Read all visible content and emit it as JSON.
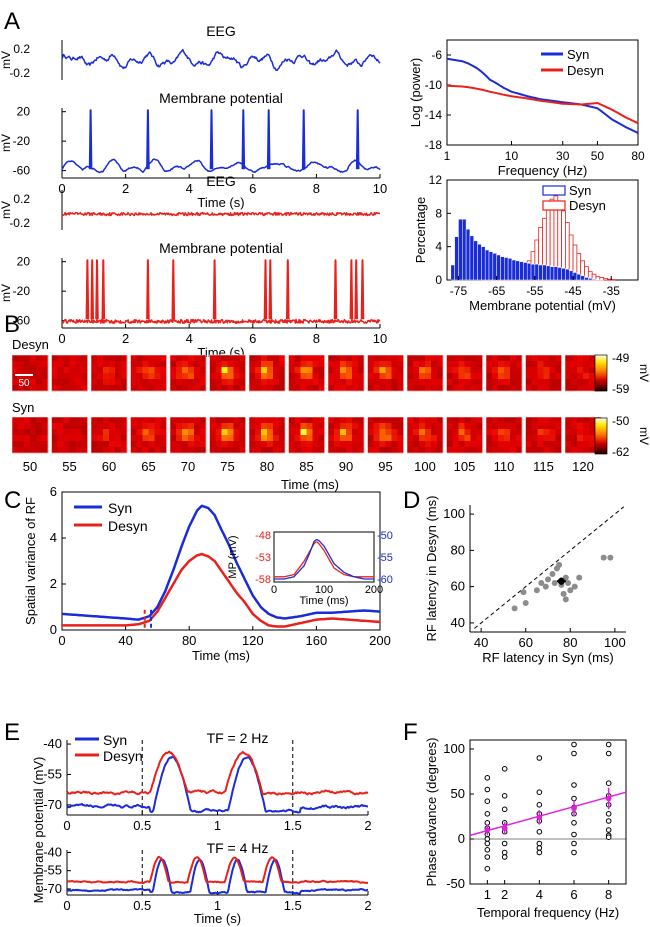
{
  "panel_labels": {
    "A": "A",
    "B": "B",
    "C": "C",
    "D": "D",
    "E": "E",
    "F": "F"
  },
  "colors": {
    "syn": "#1a2cd6",
    "desyn": "#e8211c",
    "scatter": "#8c8c8c",
    "fit": "#e020e0",
    "axis": "#000000"
  },
  "chart_data": [
    {
      "id": "A_syn_traces",
      "type": "line",
      "titles": {
        "eeg": "EEG",
        "mp": "Membrane potential"
      },
      "eeg_ylabel": "mV",
      "mp_ylabel": "mV",
      "eeg_ticks": [
        "0.2",
        "-0.2"
      ],
      "mp_ticks": [
        "20",
        "-20",
        "-60"
      ],
      "xlabel": "Time (s)",
      "xticks": [
        "0",
        "2",
        "4",
        "6",
        "8",
        "10"
      ],
      "xlim": [
        0,
        10
      ],
      "spike_times": [
        0.9,
        2.7,
        4.7,
        5.7,
        6.5,
        7.6,
        9.3
      ],
      "color": "syn"
    },
    {
      "id": "A_desyn_traces",
      "type": "line",
      "titles": {
        "eeg": "EEG",
        "mp": "Membrane potential"
      },
      "eeg_ylabel": "mV",
      "mp_ylabel": "mV",
      "eeg_ticks": [
        "0.2",
        "-0.2"
      ],
      "mp_ticks": [
        "20",
        "-20",
        "-60"
      ],
      "xlabel": "Time (s)",
      "xticks": [
        "0",
        "2",
        "4",
        "6",
        "8",
        "10"
      ],
      "xlim": [
        0,
        10
      ],
      "spike_times": [
        0.8,
        0.95,
        1.1,
        1.3,
        2.7,
        3.5,
        4.8,
        6.4,
        6.55,
        7.1,
        8.6,
        9.1,
        9.25,
        9.45
      ],
      "color": "desyn"
    },
    {
      "id": "A_power",
      "type": "line",
      "xlabel": "Frequency (Hz)",
      "ylabel": "Log (power)",
      "xticks": [
        "1",
        "10",
        "30",
        "50",
        "80"
      ],
      "xtick_values": [
        1,
        10,
        30,
        50,
        80
      ],
      "yticks": [
        "-6",
        "-10",
        "-14",
        "-18"
      ],
      "ytick_values": [
        -6,
        -10,
        -14,
        -18
      ],
      "xlim": [
        1,
        80
      ],
      "ylim": [
        -18,
        -4
      ],
      "legend": [
        "Syn",
        "Desyn"
      ],
      "series": [
        {
          "name": "Syn",
          "x": [
            1,
            3,
            5,
            8,
            10,
            15,
            20,
            30,
            40,
            50,
            60,
            70,
            80
          ],
          "y": [
            -6.5,
            -7.8,
            -9.3,
            -10.4,
            -10.9,
            -11.5,
            -11.9,
            -12.3,
            -12.6,
            -13.1,
            -14.6,
            -15.6,
            -16.4
          ]
        },
        {
          "name": "Desyn",
          "x": [
            1,
            3,
            5,
            8,
            10,
            15,
            20,
            30,
            40,
            50,
            60,
            70,
            80
          ],
          "y": [
            -10.1,
            -10.5,
            -10.9,
            -11.3,
            -11.5,
            -11.8,
            -12.1,
            -12.5,
            -12.6,
            -12.4,
            -13.3,
            -14.3,
            -15.1
          ]
        }
      ]
    },
    {
      "id": "A_histogram",
      "type": "bar",
      "xlabel": "Membrane potential (mV)",
      "ylabel": "Percentage",
      "xticks": [
        "-75",
        "-65",
        "-55",
        "-45",
        "-35"
      ],
      "xtick_values": [
        -75,
        -65,
        -55,
        -45,
        -35
      ],
      "yticks": [
        "0",
        "4",
        "8",
        "12"
      ],
      "ytick_values": [
        0,
        4,
        8,
        12
      ],
      "xlim": [
        -78,
        -28
      ],
      "ylim": [
        0,
        12
      ],
      "legend": [
        "Syn",
        "Desyn"
      ],
      "bin_start": -77,
      "bin_width": 1,
      "series": [
        {
          "name": "Syn",
          "values": [
            1.8,
            5.2,
            7.3,
            7.3,
            6.1,
            5.3,
            4.7,
            4.3,
            4.0,
            3.6,
            3.4,
            3.2,
            3.0,
            2.8,
            2.7,
            2.6,
            2.4,
            2.3,
            2.2,
            2.1,
            2.0,
            1.9,
            1.9,
            1.8,
            1.8,
            1.7,
            1.6,
            1.6,
            1.5,
            1.4,
            1.3,
            1.1,
            0.9,
            0.7,
            0.5,
            0.3,
            0.2,
            0.1,
            0.05,
            0.02,
            0,
            0,
            0,
            0,
            0,
            0,
            0,
            0
          ]
        },
        {
          "name": "Desyn",
          "values": [
            0,
            0,
            0,
            0,
            0,
            0,
            0,
            0,
            0.05,
            0.1,
            0.1,
            0.1,
            0.2,
            0.2,
            0.2,
            0.3,
            0.4,
            0.6,
            1.0,
            1.6,
            2.3,
            3.4,
            4.8,
            6.3,
            7.4,
            8.5,
            9.7,
            10.1,
            9.4,
            8.3,
            6.9,
            5.4,
            4.2,
            3.2,
            2.3,
            1.6,
            1.0,
            0.7,
            0.4,
            0.3,
            0.2,
            0.1,
            0.05,
            0,
            0,
            0,
            0,
            0
          ]
        }
      ]
    },
    {
      "id": "B_rf_maps",
      "type": "heatmap",
      "row_labels": [
        "Desyn",
        "Syn"
      ],
      "xlabel": "Time (ms)",
      "time_labels": [
        "50",
        "55",
        "60",
        "65",
        "70",
        "75",
        "80",
        "85",
        "90",
        "95",
        "100",
        "105",
        "110",
        "115",
        "120"
      ],
      "colorbar_desyn": {
        "max": "-49",
        "min": "-59",
        "unit": "mV"
      },
      "colorbar_syn": {
        "max": "-50",
        "min": "-62",
        "unit": "mV"
      },
      "scale_label": "50",
      "response_strength": [
        0.0,
        0.05,
        0.3,
        0.6,
        0.8,
        0.95,
        1.0,
        0.95,
        0.85,
        0.75,
        0.65,
        0.55,
        0.45,
        0.35,
        0.25
      ]
    },
    {
      "id": "C_spatial_variance",
      "type": "line",
      "xlabel": "Time (ms)",
      "ylabel": "Spatial variance of RF",
      "xticks": [
        "0",
        "40",
        "80",
        "120",
        "160",
        "200"
      ],
      "xtick_values": [
        0,
        40,
        80,
        120,
        160,
        200
      ],
      "yticks": [
        "0",
        "2",
        "4",
        "6"
      ],
      "ytick_values": [
        0,
        2,
        4,
        6
      ],
      "xlim": [
        0,
        200
      ],
      "ylim": [
        0,
        6
      ],
      "legend": [
        "Syn",
        "Desyn"
      ],
      "dashed_markers": [
        {
          "x": 52,
          "series": "Desyn"
        },
        {
          "x": 56,
          "series": "Syn"
        }
      ],
      "series": [
        {
          "name": "Syn",
          "x": [
            0,
            10,
            20,
            30,
            40,
            48,
            55,
            60,
            65,
            70,
            75,
            80,
            85,
            88,
            92,
            96,
            100,
            105,
            110,
            115,
            120,
            125,
            130,
            135,
            140,
            150,
            160,
            170,
            180,
            190,
            200
          ],
          "y": [
            0.7,
            0.65,
            0.6,
            0.55,
            0.5,
            0.45,
            0.6,
            1.0,
            1.7,
            2.6,
            3.6,
            4.5,
            5.2,
            5.4,
            5.3,
            5.0,
            4.4,
            3.7,
            2.9,
            2.2,
            1.5,
            1.0,
            0.7,
            0.55,
            0.5,
            0.6,
            0.75,
            0.75,
            0.8,
            0.85,
            0.8
          ]
        },
        {
          "name": "Desyn",
          "x": [
            0,
            10,
            20,
            30,
            40,
            48,
            55,
            60,
            65,
            70,
            75,
            80,
            85,
            88,
            92,
            96,
            100,
            105,
            110,
            115,
            120,
            125,
            130,
            135,
            140,
            150,
            160,
            170,
            180,
            190,
            200
          ],
          "y": [
            0.2,
            0.2,
            0.2,
            0.2,
            0.2,
            0.25,
            0.4,
            0.8,
            1.4,
            2.0,
            2.6,
            3.0,
            3.25,
            3.3,
            3.2,
            3.0,
            2.6,
            2.1,
            1.6,
            1.2,
            0.7,
            0.4,
            0.2,
            0.15,
            0.15,
            0.3,
            0.45,
            0.5,
            0.45,
            0.4,
            0.35
          ]
        }
      ]
    },
    {
      "id": "C_inset",
      "type": "line",
      "xlabel": "Time (ms)",
      "ylabel": "MP (mV)",
      "xticks": [
        "0",
        "100",
        "200"
      ],
      "left_ticks": [
        "-48",
        "-53",
        "-58"
      ],
      "right_ticks": [
        "-50",
        "-55",
        "-60"
      ],
      "xlim": [
        0,
        200
      ],
      "series": [
        {
          "name": "Desyn",
          "x": [
            0,
            20,
            40,
            60,
            70,
            80,
            85,
            90,
            100,
            110,
            120,
            140,
            160,
            180,
            200
          ],
          "y": [
            -57.5,
            -57.5,
            -57,
            -54,
            -52,
            -50,
            -49.5,
            -50,
            -51.5,
            -53.5,
            -55.5,
            -57,
            -57.5,
            -57.5,
            -57.5
          ]
        },
        {
          "name": "Syn",
          "x": [
            0,
            20,
            40,
            60,
            70,
            80,
            85,
            90,
            100,
            110,
            120,
            140,
            160,
            180,
            200
          ],
          "y": [
            -60,
            -60,
            -59.5,
            -57,
            -54.5,
            -51.5,
            -51,
            -51.3,
            -52.5,
            -54.5,
            -56.5,
            -58.5,
            -59.5,
            -60,
            -60
          ]
        }
      ]
    },
    {
      "id": "D_latency",
      "type": "scatter",
      "xlabel": "RF latency in Syn (ms)",
      "ylabel": "RF latency in Desyn (ms)",
      "xticks": [
        "40",
        "60",
        "80",
        "100"
      ],
      "xtick_values": [
        40,
        60,
        80,
        100
      ],
      "yticks": [
        "40",
        "60",
        "80",
        "100"
      ],
      "ytick_values": [
        40,
        60,
        80,
        100
      ],
      "xlim": [
        35,
        105
      ],
      "ylim": [
        35,
        105
      ],
      "points": [
        [
          55,
          48
        ],
        [
          60,
          51
        ],
        [
          59,
          57
        ],
        [
          65,
          58
        ],
        [
          67,
          62
        ],
        [
          69,
          60
        ],
        [
          70,
          64
        ],
        [
          72,
          67
        ],
        [
          73,
          62
        ],
        [
          74,
          70
        ],
        [
          75,
          72
        ],
        [
          76,
          61
        ],
        [
          77,
          56
        ],
        [
          78,
          53
        ],
        [
          78,
          65
        ],
        [
          79,
          62
        ],
        [
          80,
          58
        ],
        [
          82,
          60
        ],
        [
          84,
          65
        ],
        [
          95,
          76
        ],
        [
          98,
          76
        ]
      ],
      "mean": {
        "x": 76,
        "y": 63,
        "xerr": 2,
        "yerr": 2
      }
    },
    {
      "id": "E_tf2",
      "type": "line",
      "title": "TF = 2 Hz",
      "ylabel": "Membrane potential (mV)",
      "xticks": [
        "0",
        "0.5",
        "1",
        "1.5",
        "2"
      ],
      "yticks": [
        "-40",
        "-55",
        "-70"
      ],
      "xlim": [
        0,
        2
      ],
      "ylim": [
        -75,
        -38
      ],
      "legend": [
        "Syn",
        "Desyn"
      ],
      "dashed_x": [
        0.5,
        1.5
      ]
    },
    {
      "id": "E_tf4",
      "type": "line",
      "title": "TF = 4 Hz",
      "xlabel": "Time (s)",
      "xticks": [
        "0",
        "0.5",
        "1",
        "1.5",
        "2"
      ],
      "yticks": [
        "-40",
        "-55",
        "-70"
      ],
      "xlim": [
        0,
        2
      ],
      "ylim": [
        -75,
        -38
      ],
      "dashed_x": [
        0.5,
        1.5
      ]
    },
    {
      "id": "F_phase",
      "type": "scatter",
      "xlabel": "Temporal frequency (Hz)",
      "ylabel": "Phase advance (degrees)",
      "xticks": [
        "1",
        "2",
        "4",
        "6",
        "8"
      ],
      "xtick_values": [
        1,
        2,
        4,
        6,
        8
      ],
      "yticks": [
        "-50",
        "0",
        "50",
        "100"
      ],
      "ytick_values": [
        -50,
        0,
        50,
        100
      ],
      "xlim": [
        0,
        9
      ],
      "ylim": [
        -50,
        110
      ],
      "fit": {
        "x": [
          0,
          9
        ],
        "y": [
          4,
          52
        ]
      },
      "means": [
        {
          "x": 1,
          "y": 10,
          "err": 6
        },
        {
          "x": 2,
          "y": 12,
          "err": 7
        },
        {
          "x": 4,
          "y": 24,
          "err": 8
        },
        {
          "x": 6,
          "y": 34,
          "err": 9
        },
        {
          "x": 8,
          "y": 45,
          "err": 12
        }
      ],
      "points": [
        [
          1,
          68
        ],
        [
          1,
          55
        ],
        [
          1,
          42
        ],
        [
          1,
          28
        ],
        [
          1,
          18
        ],
        [
          1,
          12
        ],
        [
          1,
          5
        ],
        [
          1,
          0
        ],
        [
          1,
          -5
        ],
        [
          1,
          -12
        ],
        [
          1,
          -20
        ],
        [
          1,
          -33
        ],
        [
          2,
          78
        ],
        [
          2,
          48
        ],
        [
          2,
          33
        ],
        [
          2,
          18
        ],
        [
          2,
          12
        ],
        [
          2,
          8
        ],
        [
          2,
          -5
        ],
        [
          2,
          -15
        ],
        [
          2,
          -20
        ],
        [
          4,
          90
        ],
        [
          4,
          52
        ],
        [
          4,
          38
        ],
        [
          4,
          28
        ],
        [
          4,
          20
        ],
        [
          4,
          8
        ],
        [
          4,
          -5
        ],
        [
          4,
          -10
        ],
        [
          4,
          -15
        ],
        [
          6,
          105
        ],
        [
          6,
          95
        ],
        [
          6,
          60
        ],
        [
          6,
          45
        ],
        [
          6,
          35
        ],
        [
          6,
          28
        ],
        [
          6,
          18
        ],
        [
          6,
          5
        ],
        [
          6,
          -5
        ],
        [
          6,
          -15
        ],
        [
          8,
          105
        ],
        [
          8,
          95
        ],
        [
          8,
          62
        ],
        [
          8,
          48
        ],
        [
          8,
          38
        ],
        [
          8,
          28
        ],
        [
          8,
          20
        ],
        [
          8,
          10
        ],
        [
          8,
          4
        ],
        [
          8,
          2
        ]
      ]
    }
  ]
}
